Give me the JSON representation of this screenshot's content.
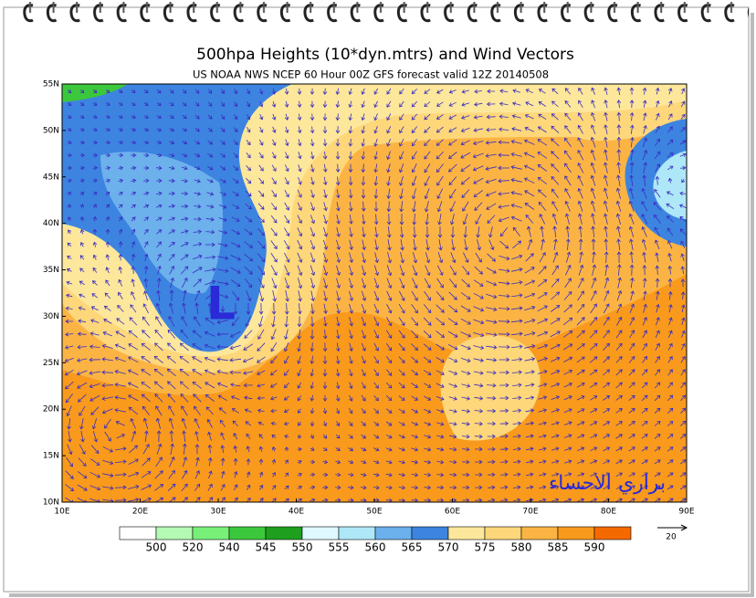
{
  "map": {
    "title": "500hpa Heights (10*dyn.mtrs) and Wind Vectors",
    "subtitle": "US NOAA NWS NCEP 60 Hour 00Z GFS forecast valid 12Z 20140508",
    "lon_range": [
      10,
      90
    ],
    "lat_range": [
      10,
      55
    ],
    "lon_ticks": [
      {
        "value": 10,
        "label": "10E"
      },
      {
        "value": 20,
        "label": "20E"
      },
      {
        "value": 30,
        "label": "30E"
      },
      {
        "value": 40,
        "label": "40E"
      },
      {
        "value": 50,
        "label": "50E"
      },
      {
        "value": 60,
        "label": "60E"
      },
      {
        "value": 70,
        "label": "70E"
      },
      {
        "value": 80,
        "label": "80E"
      },
      {
        "value": 90,
        "label": "90E"
      }
    ],
    "lat_ticks": [
      {
        "value": 10,
        "label": "10N"
      },
      {
        "value": 15,
        "label": "15N"
      },
      {
        "value": 20,
        "label": "20N"
      },
      {
        "value": 25,
        "label": "25N"
      },
      {
        "value": 30,
        "label": "30N"
      },
      {
        "value": 35,
        "label": "35N"
      },
      {
        "value": 40,
        "label": "40N"
      },
      {
        "value": 45,
        "label": "45N"
      },
      {
        "value": 50,
        "label": "50N"
      },
      {
        "value": 55,
        "label": "55N"
      }
    ],
    "low_label": "L",
    "watermark": "براري الاحساء"
  },
  "colorbar": {
    "levels": [
      500,
      520,
      540,
      545,
      550,
      555,
      560,
      565,
      570,
      575,
      580,
      585,
      590
    ],
    "colors": [
      "#ffffff",
      "#b4fab4",
      "#78f078",
      "#3cc83c",
      "#1ea01e",
      "#dff8ff",
      "#aee8f8",
      "#6cb0ec",
      "#3c84e0",
      "#fde79b",
      "#fdd77a",
      "#fbb444",
      "#f99a1c",
      "#f56a00"
    ]
  },
  "reference_vector": 20
}
